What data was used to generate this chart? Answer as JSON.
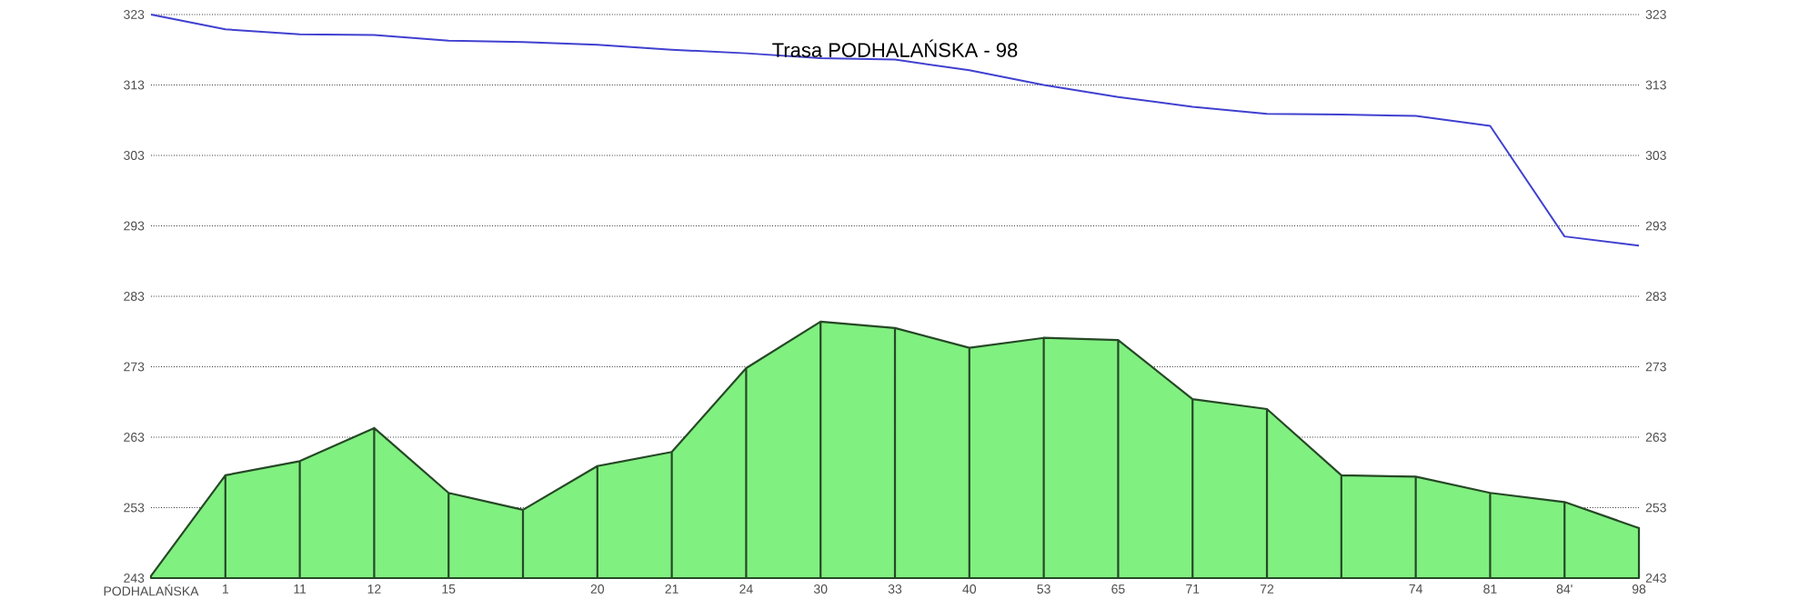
{
  "chart_data": {
    "type": "area",
    "title": "Trasa PODHALAŃSKA - 98",
    "categories": [
      "PODHALAŃSKA",
      "1",
      "11",
      "12",
      "15",
      null,
      "20",
      "21",
      "24",
      "30",
      "33",
      "40",
      "53",
      "65",
      "71",
      "72",
      null,
      "74",
      "81",
      "84'",
      "98"
    ],
    "ylim": [
      243,
      323
    ],
    "yticks": [
      243,
      253,
      263,
      273,
      283,
      293,
      303,
      313,
      323
    ],
    "y2lim": [
      243,
      323
    ],
    "y2ticks": [
      243,
      253,
      263,
      273,
      283,
      293,
      303,
      313,
      323
    ],
    "grid": "y",
    "series": [
      {
        "color": "#80f080",
        "values": [
          243.3,
          257.6,
          259.6,
          264.3,
          255.1,
          252.7,
          258.9,
          260.9,
          272.8,
          279.4,
          278.5,
          275.7,
          277.1,
          276.8,
          268.4,
          267.0,
          257.6,
          257.4,
          255.1,
          253.8,
          250.1
        ]
      },
      {
        "type": "line",
        "color": "#4040d0",
        "values": [
          323,
          320.9,
          320.2,
          320.1,
          319.3,
          319.1,
          318.7,
          318.0,
          317.5,
          316.8,
          316.6,
          315.1,
          313.0,
          311.3,
          309.9,
          308.9,
          308.8,
          308.6,
          307.2,
          291.5,
          290.2
        ]
      }
    ]
  }
}
